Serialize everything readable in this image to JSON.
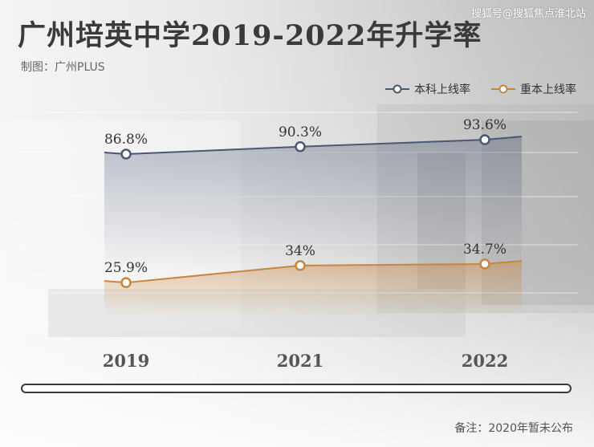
{
  "watermark": "搜狐号@搜狐焦点淮北站",
  "title": "广州培英中学2019-2022年升学率",
  "subtitle": "制图：广州PLUS",
  "footnote": "备注：2020年暂未公布",
  "colors": {
    "series1": "#4a5873",
    "series2": "#c9843f",
    "text": "#3a3a3a"
  },
  "chart_data": {
    "type": "line",
    "categories": [
      "2019",
      "2021",
      "2022"
    ],
    "series": [
      {
        "name": "本科上线率",
        "values": [
          86.8,
          90.3,
          93.6
        ],
        "labels": [
          "86.8%",
          "90.3%",
          "93.6%"
        ],
        "color": "#4a5873"
      },
      {
        "name": "重本上线率",
        "values": [
          25.9,
          34,
          34.7
        ],
        "labels": [
          "25.9%",
          "34%",
          "34.7%"
        ],
        "color": "#c9843f"
      }
    ],
    "unit": "%",
    "grid": true,
    "legend": "top-right"
  }
}
